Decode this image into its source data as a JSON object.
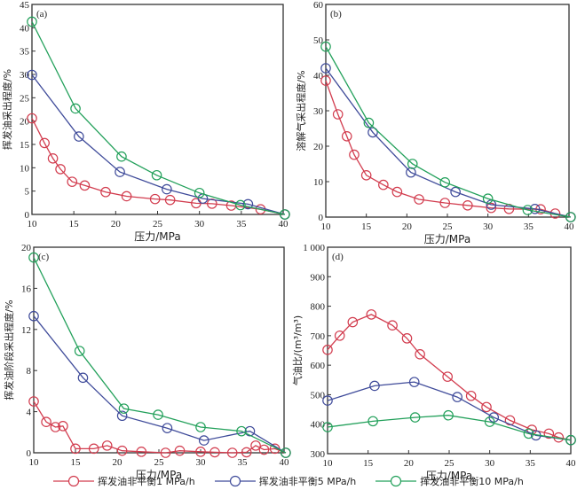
{
  "chart_data": [
    {
      "id": "a",
      "type": "line",
      "panel_label": "(a)",
      "xlabel": "压力/MPa",
      "ylabel": "挥发油采出程度/%",
      "xlim": [
        10,
        40
      ],
      "ylim": [
        0,
        45
      ],
      "xticks": [
        10,
        15,
        20,
        25,
        30,
        35,
        40
      ],
      "yticks": [
        0,
        5,
        10,
        15,
        20,
        25,
        30,
        35,
        40,
        45
      ],
      "series": [
        {
          "name": "挥发油非平衡1 MPa/h",
          "color": "#d23c4e",
          "x": [
            10,
            11.5,
            12.5,
            13.4,
            14.8,
            16.3,
            18.8,
            21.3,
            24.7,
            26.5,
            29.6,
            31.5,
            33.8,
            37.3,
            40.2
          ],
          "y": [
            20.6,
            15.3,
            12.0,
            9.7,
            7.0,
            6.2,
            4.8,
            3.9,
            3.3,
            3.1,
            2.4,
            2.3,
            1.9,
            1.1,
            0
          ]
        },
        {
          "name": "挥发油非平衡5 MPa/h",
          "color": "#3f4b9a",
          "x": [
            10,
            15.6,
            20.5,
            26.1,
            30.4,
            35.8,
            40.2
          ],
          "y": [
            29.9,
            16.7,
            9.1,
            5.4,
            3.4,
            2.2,
            0
          ]
        },
        {
          "name": "挥发油非平衡10 MPa/h",
          "color": "#22a05a",
          "x": [
            10,
            15.2,
            20.7,
            24.9,
            30.0,
            34.9,
            40.2
          ],
          "y": [
            41.3,
            22.7,
            12.4,
            8.4,
            4.6,
            2.0,
            0
          ]
        }
      ]
    },
    {
      "id": "b",
      "type": "line",
      "panel_label": "(b)",
      "xlabel": "压力/MPa",
      "ylabel": "溶解气采出程度/%",
      "xlim": [
        10,
        40
      ],
      "ylim": [
        0,
        60
      ],
      "xticks": [
        10,
        15,
        20,
        25,
        30,
        35,
        40
      ],
      "yticks": [
        0,
        10,
        20,
        30,
        40,
        50,
        60
      ],
      "series": [
        {
          "name": "挥发油非平衡1 MPa/h",
          "color": "#d23c4e",
          "x": [
            10,
            11.5,
            12.6,
            13.5,
            15.0,
            17.1,
            18.8,
            21.5,
            24.7,
            27.5,
            30.4,
            32.6,
            36.5,
            38.3,
            40.2
          ],
          "y": [
            38.5,
            29.0,
            22.8,
            17.6,
            11.8,
            9.1,
            7.1,
            5.0,
            4.0,
            3.3,
            2.6,
            2.3,
            2.2,
            1.0,
            0
          ]
        },
        {
          "name": "挥发油非平衡5 MPa/h",
          "color": "#3f4b9a",
          "x": [
            10,
            15.8,
            20.5,
            26.0,
            30.4,
            35.8,
            40.2
          ],
          "y": [
            42.0,
            23.9,
            12.6,
            7.1,
            3.5,
            2.3,
            0
          ]
        },
        {
          "name": "挥发油非平衡10 MPa/h",
          "color": "#22a05a",
          "x": [
            10,
            15.3,
            20.7,
            24.7,
            30.0,
            34.9,
            40.2
          ],
          "y": [
            48.1,
            26.6,
            15.0,
            9.8,
            5.2,
            2.0,
            0
          ]
        }
      ]
    },
    {
      "id": "c",
      "type": "line",
      "panel_label": "(c)",
      "xlabel": "压力/MPa",
      "ylabel": "挥发油阶段采出程度/%",
      "xlim": [
        10,
        40
      ],
      "ylim": [
        0,
        20
      ],
      "xticks": [
        10,
        15,
        20,
        25,
        30,
        35,
        40
      ],
      "yticks": [
        0,
        4,
        8,
        12,
        16,
        20
      ],
      "series": [
        {
          "name": "挥发油非平衡1 MPa/h",
          "color": "#d23c4e",
          "x": [
            10,
            11.5,
            12.6,
            13.5,
            15.0,
            17.2,
            18.8,
            20.6,
            22.9,
            25.8,
            27.5,
            30.0,
            31.7,
            33.8,
            35.5,
            36.6,
            37.6,
            38.9,
            40.2
          ],
          "y": [
            5.0,
            3.0,
            2.5,
            2.6,
            0.4,
            0.4,
            0.7,
            0.2,
            0.1,
            0.0,
            0.2,
            0.1,
            0.05,
            0.0,
            0.05,
            0.7,
            0.3,
            0.4,
            0
          ]
        },
        {
          "name": "挥发油非平衡5 MPa/h",
          "color": "#3f4b9a",
          "x": [
            10,
            15.9,
            20.6,
            26.0,
            30.4,
            35.9,
            40.2
          ],
          "y": [
            13.3,
            7.3,
            3.6,
            2.4,
            1.2,
            2.1,
            0
          ]
        },
        {
          "name": "挥发油非平衡10 MPa/h",
          "color": "#22a05a",
          "x": [
            10,
            15.5,
            20.8,
            24.9,
            30.0,
            34.9,
            40.2
          ],
          "y": [
            19.0,
            9.9,
            4.3,
            3.7,
            2.5,
            2.1,
            0
          ]
        }
      ]
    },
    {
      "id": "d",
      "type": "line",
      "panel_label": "(d)",
      "xlabel": "压力/MPa",
      "ylabel": "气油比/(m³/m³)",
      "xlim": [
        10,
        40
      ],
      "ylim": [
        300,
        1000
      ],
      "xticks": [
        10,
        15,
        20,
        25,
        30,
        35,
        40
      ],
      "yticks": [
        300,
        400,
        500,
        600,
        700,
        800,
        900,
        1000
      ],
      "ytick_labels": [
        "300",
        "400",
        "500",
        "600",
        "700",
        "800",
        "900",
        "1 000"
      ],
      "series": [
        {
          "name": "挥发油非平衡1 MPa/h",
          "color": "#d23c4e",
          "x": [
            10,
            11.5,
            13.1,
            15.4,
            18.0,
            19.8,
            21.4,
            24.8,
            27.7,
            29.6,
            32.5,
            35.2,
            37.3,
            38.5,
            40.0
          ],
          "y": [
            652,
            700,
            746,
            772,
            735,
            691,
            637,
            561,
            496,
            458,
            413,
            381,
            368,
            355,
            346
          ]
        },
        {
          "name": "挥发油非平衡5 MPa/h",
          "color": "#3f4b9a",
          "x": [
            10,
            15.8,
            20.7,
            26.0,
            30.5,
            35.7,
            40.0
          ],
          "y": [
            480,
            530,
            543,
            492,
            423,
            362,
            346
          ]
        },
        {
          "name": "挥发油非平衡10 MPa/h",
          "color": "#22a05a",
          "x": [
            10,
            15.6,
            20.8,
            24.9,
            30.0,
            34.8,
            40.0
          ],
          "y": [
            390,
            410,
            423,
            430,
            408,
            368,
            346
          ]
        }
      ]
    }
  ],
  "legend": {
    "position": "bottom",
    "items": [
      {
        "label": "挥发油非平衡1 MPa/h",
        "color": "#d23c4e"
      },
      {
        "label": "挥发油非平衡5 MPa/h",
        "color": "#3f4b9a"
      },
      {
        "label": "挥发油非平衡10 MPa/h",
        "color": "#22a05a"
      }
    ]
  }
}
